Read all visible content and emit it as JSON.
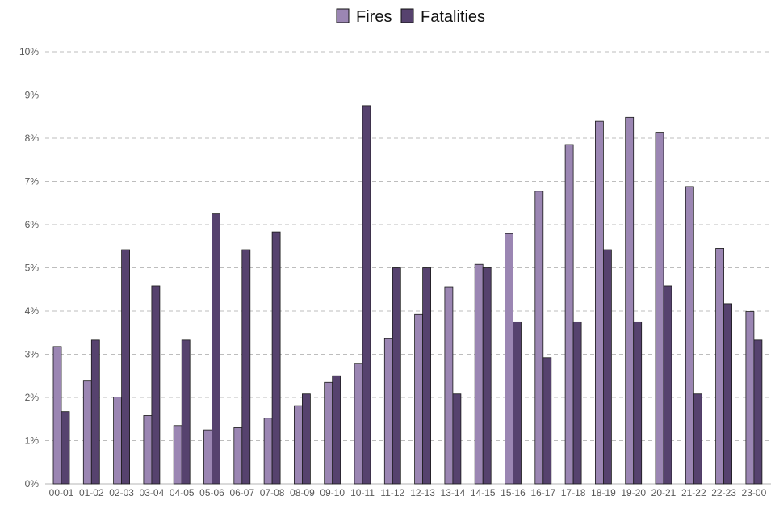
{
  "chart_data": {
    "type": "bar",
    "title": "",
    "xlabel": "",
    "ylabel": "",
    "ylim": [
      0,
      10
    ],
    "y_ticks": [
      "0%",
      "1%",
      "2%",
      "3%",
      "4%",
      "5%",
      "6%",
      "7%",
      "8%",
      "9%",
      "10%"
    ],
    "grid": "horizontal dashed",
    "legend_position": "top-center",
    "categories": [
      "00-01",
      "01-02",
      "02-03",
      "03-04",
      "04-05",
      "05-06",
      "06-07",
      "07-08",
      "08-09",
      "09-10",
      "10-11",
      "11-12",
      "12-13",
      "13-14",
      "14-15",
      "15-16",
      "16-17",
      "17-18",
      "18-19",
      "19-20",
      "20-21",
      "21-22",
      "22-23",
      "23-00"
    ],
    "series": [
      {
        "name": "Fires",
        "color": "#9b86b3",
        "values": [
          3.18,
          2.38,
          2.01,
          1.58,
          1.35,
          1.25,
          1.3,
          1.52,
          1.81,
          2.35,
          2.79,
          3.36,
          3.92,
          4.56,
          5.08,
          5.79,
          6.77,
          7.85,
          8.39,
          8.48,
          8.12,
          6.88,
          5.45,
          3.99
        ]
      },
      {
        "name": "Fatalities",
        "color": "#56426e",
        "values": [
          1.67,
          3.33,
          5.42,
          4.58,
          3.33,
          6.25,
          5.42,
          5.83,
          2.08,
          2.5,
          8.75,
          5.0,
          5.0,
          2.08,
          5.0,
          3.75,
          2.92,
          3.75,
          5.42,
          3.75,
          4.58,
          2.08,
          4.17,
          3.33
        ]
      }
    ]
  }
}
